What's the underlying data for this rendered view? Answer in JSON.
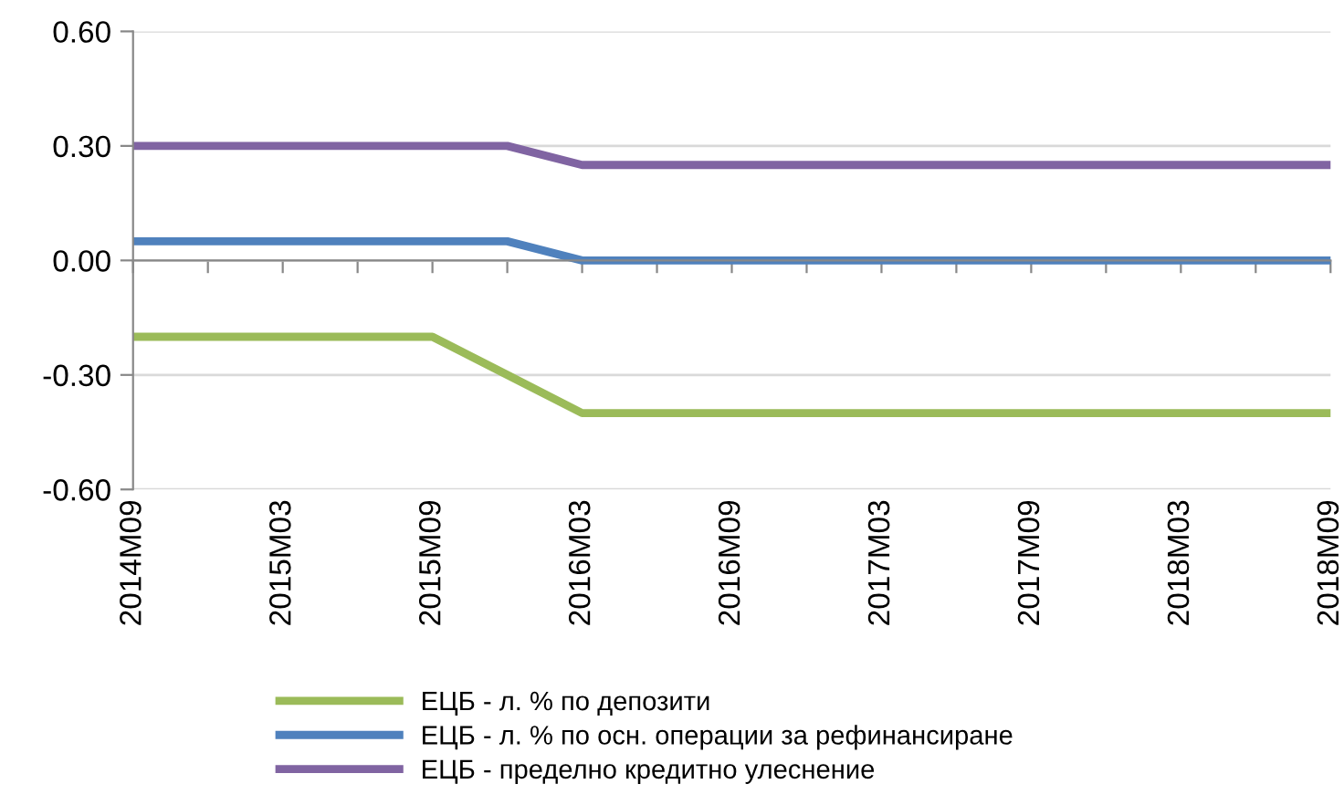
{
  "chart_data": {
    "type": "line",
    "categories": [
      "2014M09",
      null,
      "2015M03",
      null,
      "2015M09",
      null,
      "2016M03",
      null,
      "2016M09",
      null,
      "2017M03",
      null,
      "2017M09",
      null,
      "2018M03",
      null,
      "2018M09"
    ],
    "series": [
      {
        "name": "ЕЦБ - л. % по депозити",
        "color": "#9bbb59",
        "values": [
          -0.2,
          -0.2,
          -0.2,
          -0.2,
          -0.2,
          -0.3,
          -0.4,
          -0.4,
          -0.4,
          -0.4,
          -0.4,
          -0.4,
          -0.4,
          -0.4,
          -0.4,
          -0.4,
          -0.4
        ]
      },
      {
        "name": "ЕЦБ - л. % по осн. операции за рефинансиране",
        "color": "#4f81bd",
        "values": [
          0.05,
          0.05,
          0.05,
          0.05,
          0.05,
          0.05,
          0,
          0,
          0,
          0,
          0,
          0,
          0,
          0,
          0,
          0,
          0
        ]
      },
      {
        "name": "ЕЦБ - пределно кредитно улеснение",
        "color": "#8064a2",
        "values": [
          0.3,
          0.3,
          0.3,
          0.3,
          0.3,
          0.3,
          0.25,
          0.25,
          0.25,
          0.25,
          0.25,
          0.25,
          0.25,
          0.25,
          0.25,
          0.25,
          0.25
        ]
      }
    ],
    "ylim": [
      -0.6,
      0.6
    ],
    "yticks": [
      {
        "value": -0.6,
        "label": "-0.60"
      },
      {
        "value": -0.3,
        "label": "-0.30"
      },
      {
        "value": 0,
        "label": "0.00"
      },
      {
        "value": 0.3,
        "label": "0.30"
      },
      {
        "value": 0.6,
        "label": "0.60"
      }
    ],
    "grid": "y",
    "legend": "bottom",
    "marker": "none",
    "line_style": "solid"
  }
}
